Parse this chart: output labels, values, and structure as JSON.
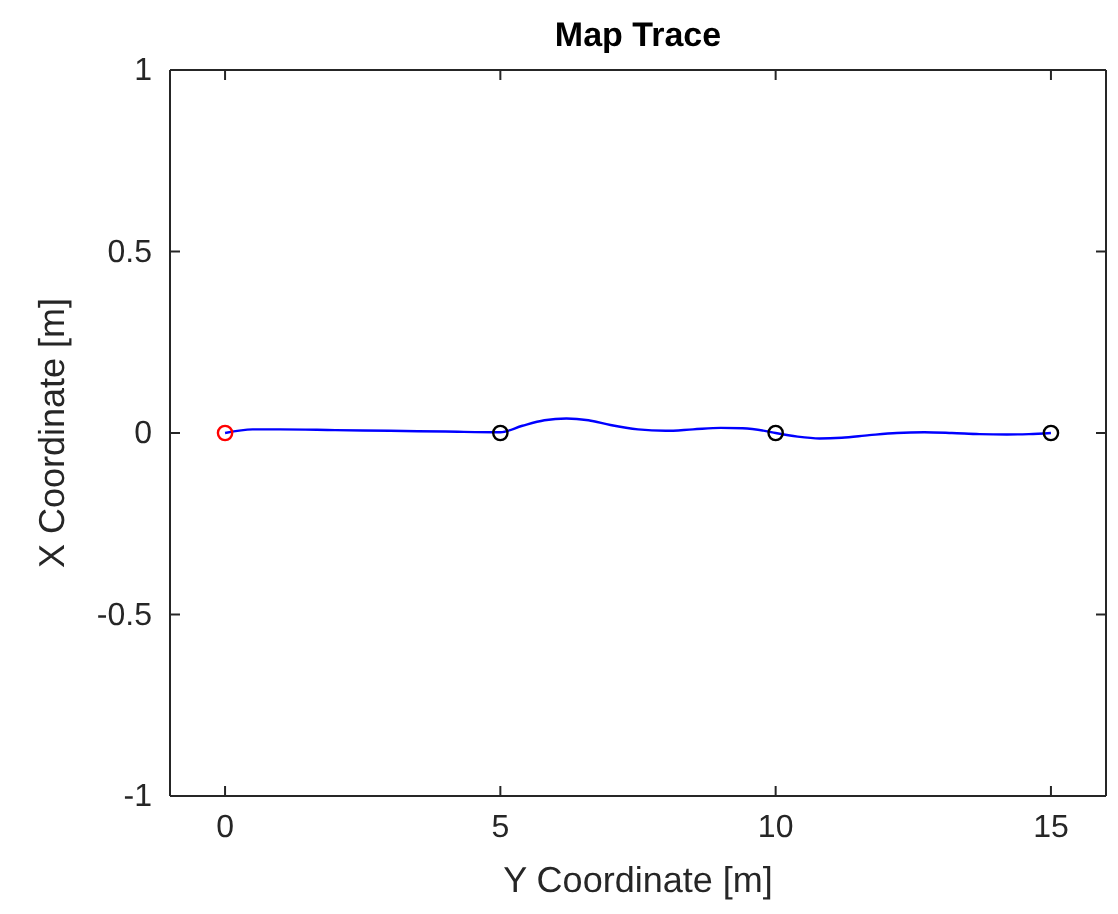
{
  "chart_data": {
    "type": "line",
    "title": "Map Trace",
    "xlabel": "Y Coordinate [m]",
    "ylabel": "X Coordinate [m]",
    "xlim": [
      -1,
      16
    ],
    "xticks": [
      0,
      5,
      10,
      15
    ],
    "ylim": [
      -1,
      1
    ],
    "yticks": [
      -1,
      -0.5,
      0,
      0.5,
      1
    ],
    "grid": false,
    "series": [
      {
        "color": "#0000ff",
        "marker": "none",
        "x": [
          0,
          0.5,
          1,
          2,
          3,
          4,
          5,
          5.4,
          5.8,
          6.2,
          6.6,
          7,
          7.5,
          8,
          8.5,
          9,
          9.4,
          9.8,
          10,
          10.4,
          10.8,
          11.2,
          11.7,
          12.2,
          12.7,
          13.2,
          13.7,
          14.2,
          14.6,
          15
        ],
        "values": [
          0,
          0.01,
          0.01,
          0.008,
          0.006,
          0.004,
          0.002,
          0.02,
          0.035,
          0.04,
          0.035,
          0.022,
          0.01,
          0.006,
          0.01,
          0.014,
          0.013,
          0.006,
          0,
          -0.01,
          -0.015,
          -0.013,
          -0.006,
          0,
          0.002,
          0,
          -0.003,
          -0.004,
          -0.003,
          0
        ]
      },
      {
        "type": "scatter",
        "color": "#ff0000",
        "marker": "circle",
        "x": [
          0
        ],
        "values": [
          0
        ]
      },
      {
        "type": "scatter",
        "color": "#000000",
        "marker": "circle",
        "x": [
          5,
          10,
          15
        ],
        "values": [
          0,
          0,
          0
        ]
      }
    ]
  }
}
